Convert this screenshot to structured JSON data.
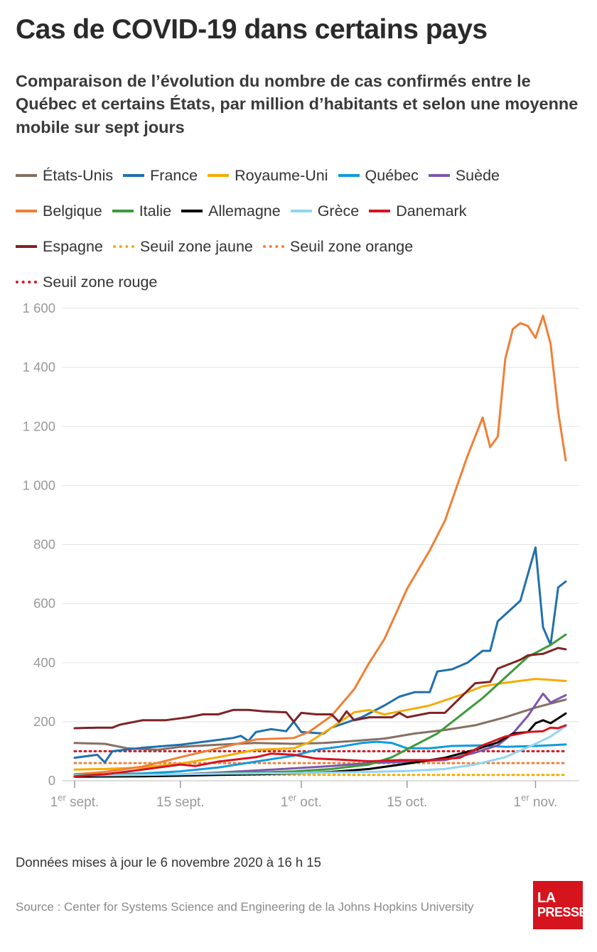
{
  "header": {
    "title": "Cas de COVID-19 dans certains pays",
    "subtitle": "Comparaison de l’évolution du nombre de cas confirmés entre le Québec et certains États, par million d’habitants et selon une moyenne mobile sur sept jours"
  },
  "footer": {
    "note": "Données mises à jour le 6 novembre 2020 à 16 h 15",
    "source": "Source : Center for Systems Science and Engineering de la Johns Hopkins University",
    "logo_line1": "LA",
    "logo_line2": "PRESSE"
  },
  "chart_data": {
    "type": "line",
    "title": "Cas de COVID-19 dans certains pays",
    "xlabel": "",
    "ylabel": "",
    "ylim": [
      0,
      1600
    ],
    "x_range": [
      "2020-09-01",
      "2020-11-05"
    ],
    "yticks": [
      0,
      200,
      400,
      600,
      800,
      1000,
      1200,
      1400,
      1600
    ],
    "ytick_labels": [
      "0",
      "200",
      "400",
      "600",
      "800",
      "1 000",
      "1 200",
      "1 400",
      "1 600"
    ],
    "xticks": [
      {
        "date": "2020-09-01",
        "label": "1",
        "sup": "er",
        "rest": " sept."
      },
      {
        "date": "2020-09-15",
        "label": "15 sept.",
        "sup": "",
        "rest": ""
      },
      {
        "date": "2020-10-01",
        "label": "1",
        "sup": "er",
        "rest": " oct."
      },
      {
        "date": "2020-10-15",
        "label": "15 oct.",
        "sup": "",
        "rest": ""
      },
      {
        "date": "2020-11-01",
        "label": "1",
        "sup": "er",
        "rest": " nov."
      }
    ],
    "grid": true,
    "legend_position": "top",
    "series": [
      {
        "name": "États-Unis",
        "color": "#857062",
        "style": "solid",
        "points": [
          [
            "2020-09-01",
            128
          ],
          [
            "2020-09-05",
            125
          ],
          [
            "2020-09-08",
            110
          ],
          [
            "2020-09-12",
            105
          ],
          [
            "2020-09-15",
            115
          ],
          [
            "2020-09-20",
            122
          ],
          [
            "2020-09-25",
            128
          ],
          [
            "2020-09-30",
            125
          ],
          [
            "2020-10-04",
            128
          ],
          [
            "2020-10-08",
            135
          ],
          [
            "2020-10-12",
            143
          ],
          [
            "2020-10-16",
            160
          ],
          [
            "2020-10-20",
            172
          ],
          [
            "2020-10-24",
            188
          ],
          [
            "2020-10-28",
            215
          ],
          [
            "2020-11-01",
            248
          ],
          [
            "2020-11-05",
            275
          ]
        ]
      },
      {
        "name": "France",
        "color": "#2070ad",
        "style": "solid",
        "points": [
          [
            "2020-09-01",
            78
          ],
          [
            "2020-09-04",
            88
          ],
          [
            "2020-09-05",
            62
          ],
          [
            "2020-09-06",
            100
          ],
          [
            "2020-09-10",
            112
          ],
          [
            "2020-09-15",
            122
          ],
          [
            "2020-09-19",
            135
          ],
          [
            "2020-09-22",
            145
          ],
          [
            "2020-09-23",
            152
          ],
          [
            "2020-09-24",
            135
          ],
          [
            "2020-09-25",
            165
          ],
          [
            "2020-09-27",
            175
          ],
          [
            "2020-09-29",
            168
          ],
          [
            "2020-09-30",
            200
          ],
          [
            "2020-10-01",
            165
          ],
          [
            "2020-10-04",
            160
          ],
          [
            "2020-10-05",
            180
          ],
          [
            "2020-10-09",
            215
          ],
          [
            "2020-10-12",
            255
          ],
          [
            "2020-10-14",
            285
          ],
          [
            "2020-10-16",
            300
          ],
          [
            "2020-10-18",
            300
          ],
          [
            "2020-10-19",
            370
          ],
          [
            "2020-10-21",
            378
          ],
          [
            "2020-10-23",
            400
          ],
          [
            "2020-10-25",
            440
          ],
          [
            "2020-10-26",
            440
          ],
          [
            "2020-10-27",
            540
          ],
          [
            "2020-10-30",
            610
          ],
          [
            "2020-10-31",
            700
          ],
          [
            "2020-11-01",
            790
          ],
          [
            "2020-11-02",
            520
          ],
          [
            "2020-11-03",
            460
          ],
          [
            "2020-11-04",
            655
          ],
          [
            "2020-11-05",
            675
          ]
        ]
      },
      {
        "name": "Royaume-Uni",
        "color": "#f5ac00",
        "style": "solid",
        "points": [
          [
            "2020-09-01",
            38
          ],
          [
            "2020-09-05",
            40
          ],
          [
            "2020-09-10",
            45
          ],
          [
            "2020-09-15",
            58
          ],
          [
            "2020-09-20",
            80
          ],
          [
            "2020-09-25",
            105
          ],
          [
            "2020-09-30",
            110
          ],
          [
            "2020-10-02",
            130
          ],
          [
            "2020-10-05",
            180
          ],
          [
            "2020-10-08",
            232
          ],
          [
            "2020-10-10",
            240
          ],
          [
            "2020-10-12",
            225
          ],
          [
            "2020-10-15",
            240
          ],
          [
            "2020-10-18",
            255
          ],
          [
            "2020-10-22",
            290
          ],
          [
            "2020-10-25",
            320
          ],
          [
            "2020-10-28",
            332
          ],
          [
            "2020-11-01",
            345
          ],
          [
            "2020-11-05",
            338
          ]
        ]
      },
      {
        "name": "Québec",
        "color": "#0f9bde",
        "style": "solid",
        "points": [
          [
            "2020-09-01",
            20
          ],
          [
            "2020-09-10",
            25
          ],
          [
            "2020-09-15",
            32
          ],
          [
            "2020-09-20",
            45
          ],
          [
            "2020-09-25",
            65
          ],
          [
            "2020-09-30",
            85
          ],
          [
            "2020-10-03",
            105
          ],
          [
            "2020-10-06",
            115
          ],
          [
            "2020-10-09",
            128
          ],
          [
            "2020-10-11",
            132
          ],
          [
            "2020-10-13",
            128
          ],
          [
            "2020-10-15",
            110
          ],
          [
            "2020-10-18",
            110
          ],
          [
            "2020-10-21",
            118
          ],
          [
            "2020-10-25",
            120
          ],
          [
            "2020-10-28",
            115
          ],
          [
            "2020-11-01",
            118
          ],
          [
            "2020-11-05",
            123
          ]
        ]
      },
      {
        "name": "Suède",
        "color": "#7d57ab",
        "style": "solid",
        "points": [
          [
            "2020-09-01",
            15
          ],
          [
            "2020-09-10",
            18
          ],
          [
            "2020-09-15",
            22
          ],
          [
            "2020-09-20",
            28
          ],
          [
            "2020-09-25",
            35
          ],
          [
            "2020-09-30",
            42
          ],
          [
            "2020-10-05",
            50
          ],
          [
            "2020-10-10",
            60
          ],
          [
            "2020-10-15",
            65
          ],
          [
            "2020-10-20",
            70
          ],
          [
            "2020-10-24",
            95
          ],
          [
            "2020-10-27",
            120
          ],
          [
            "2020-10-29",
            160
          ],
          [
            "2020-10-31",
            220
          ],
          [
            "2020-11-02",
            295
          ],
          [
            "2020-11-03",
            265
          ],
          [
            "2020-11-05",
            290
          ]
        ]
      },
      {
        "name": "Belgique",
        "color": "#f07f36",
        "style": "solid",
        "points": [
          [
            "2020-09-01",
            22
          ],
          [
            "2020-09-05",
            30
          ],
          [
            "2020-09-10",
            48
          ],
          [
            "2020-09-15",
            80
          ],
          [
            "2020-09-20",
            110
          ],
          [
            "2020-09-25",
            140
          ],
          [
            "2020-09-30",
            145
          ],
          [
            "2020-10-02",
            165
          ],
          [
            "2020-10-05",
            220
          ],
          [
            "2020-10-08",
            310
          ],
          [
            "2020-10-10",
            400
          ],
          [
            "2020-10-12",
            480
          ],
          [
            "2020-10-15",
            650
          ],
          [
            "2020-10-18",
            780
          ],
          [
            "2020-10-20",
            880
          ],
          [
            "2020-10-23",
            1100
          ],
          [
            "2020-10-25",
            1230
          ],
          [
            "2020-10-26",
            1130
          ],
          [
            "2020-10-27",
            1165
          ],
          [
            "2020-10-28",
            1430
          ],
          [
            "2020-10-29",
            1530
          ],
          [
            "2020-10-30",
            1550
          ],
          [
            "2020-10-31",
            1540
          ],
          [
            "2020-11-01",
            1500
          ],
          [
            "2020-11-02",
            1575
          ],
          [
            "2020-11-03",
            1480
          ],
          [
            "2020-11-04",
            1250
          ],
          [
            "2020-11-05",
            1085
          ]
        ]
      },
      {
        "name": "Italie",
        "color": "#3d9a3a",
        "style": "solid",
        "points": [
          [
            "2020-09-01",
            20
          ],
          [
            "2020-09-10",
            22
          ],
          [
            "2020-09-15",
            22
          ],
          [
            "2020-09-20",
            25
          ],
          [
            "2020-09-25",
            28
          ],
          [
            "2020-09-30",
            32
          ],
          [
            "2020-10-05",
            40
          ],
          [
            "2020-10-10",
            55
          ],
          [
            "2020-10-13",
            80
          ],
          [
            "2020-10-16",
            120
          ],
          [
            "2020-10-19",
            160
          ],
          [
            "2020-10-22",
            220
          ],
          [
            "2020-10-25",
            280
          ],
          [
            "2020-10-28",
            350
          ],
          [
            "2020-10-31",
            420
          ],
          [
            "2020-11-03",
            460
          ],
          [
            "2020-11-05",
            495
          ]
        ]
      },
      {
        "name": "Allemagne",
        "color": "#000000",
        "style": "solid",
        "points": [
          [
            "2020-09-01",
            14
          ],
          [
            "2020-09-10",
            15
          ],
          [
            "2020-09-15",
            17
          ],
          [
            "2020-09-20",
            20
          ],
          [
            "2020-09-25",
            22
          ],
          [
            "2020-09-30",
            25
          ],
          [
            "2020-10-05",
            30
          ],
          [
            "2020-10-10",
            40
          ],
          [
            "2020-10-15",
            58
          ],
          [
            "2020-10-20",
            78
          ],
          [
            "2020-10-24",
            105
          ],
          [
            "2020-10-27",
            130
          ],
          [
            "2020-10-29",
            160
          ],
          [
            "2020-10-31",
            165
          ],
          [
            "2020-11-01",
            195
          ],
          [
            "2020-11-02",
            205
          ],
          [
            "2020-11-03",
            195
          ],
          [
            "2020-11-05",
            228
          ]
        ]
      },
      {
        "name": "Grèce",
        "color": "#8fd6f3",
        "style": "solid",
        "points": [
          [
            "2020-09-01",
            18
          ],
          [
            "2020-09-10",
            20
          ],
          [
            "2020-09-15",
            22
          ],
          [
            "2020-09-20",
            24
          ],
          [
            "2020-09-25",
            25
          ],
          [
            "2020-09-30",
            26
          ],
          [
            "2020-10-05",
            28
          ],
          [
            "2020-10-10",
            30
          ],
          [
            "2020-10-15",
            33
          ],
          [
            "2020-10-20",
            40
          ],
          [
            "2020-10-24",
            55
          ],
          [
            "2020-10-28",
            80
          ],
          [
            "2020-11-01",
            125
          ],
          [
            "2020-11-03",
            150
          ],
          [
            "2020-11-05",
            185
          ]
        ]
      },
      {
        "name": "Danemark",
        "color": "#d6141e",
        "style": "solid",
        "points": [
          [
            "2020-09-01",
            15
          ],
          [
            "2020-09-05",
            22
          ],
          [
            "2020-09-10",
            38
          ],
          [
            "2020-09-15",
            55
          ],
          [
            "2020-09-17",
            50
          ],
          [
            "2020-09-20",
            65
          ],
          [
            "2020-09-25",
            80
          ],
          [
            "2020-09-27",
            92
          ],
          [
            "2020-09-30",
            88
          ],
          [
            "2020-10-03",
            75
          ],
          [
            "2020-10-06",
            72
          ],
          [
            "2020-10-10",
            66
          ],
          [
            "2020-10-14",
            70
          ],
          [
            "2020-10-18",
            70
          ],
          [
            "2020-10-22",
            78
          ],
          [
            "2020-10-25",
            120
          ],
          [
            "2020-10-28",
            150
          ],
          [
            "2020-10-31",
            165
          ],
          [
            "2020-11-02",
            168
          ],
          [
            "2020-11-03",
            180
          ],
          [
            "2020-11-04",
            178
          ],
          [
            "2020-11-05",
            188
          ]
        ]
      },
      {
        "name": "Espagne",
        "color": "#7f2325",
        "style": "solid",
        "points": [
          [
            "2020-09-01",
            178
          ],
          [
            "2020-09-04",
            180
          ],
          [
            "2020-09-06",
            180
          ],
          [
            "2020-09-07",
            190
          ],
          [
            "2020-09-10",
            205
          ],
          [
            "2020-09-13",
            205
          ],
          [
            "2020-09-16",
            215
          ],
          [
            "2020-09-18",
            225
          ],
          [
            "2020-09-20",
            225
          ],
          [
            "2020-09-22",
            240
          ],
          [
            "2020-09-24",
            240
          ],
          [
            "2020-09-26",
            235
          ],
          [
            "2020-09-29",
            232
          ],
          [
            "2020-09-30",
            200
          ],
          [
            "2020-10-01",
            230
          ],
          [
            "2020-10-03",
            225
          ],
          [
            "2020-10-05",
            225
          ],
          [
            "2020-10-06",
            200
          ],
          [
            "2020-10-07",
            235
          ],
          [
            "2020-10-08",
            205
          ],
          [
            "2020-10-10",
            215
          ],
          [
            "2020-10-13",
            215
          ],
          [
            "2020-10-14",
            230
          ],
          [
            "2020-10-15",
            215
          ],
          [
            "2020-10-18",
            230
          ],
          [
            "2020-10-20",
            230
          ],
          [
            "2020-10-22",
            280
          ],
          [
            "2020-10-24",
            330
          ],
          [
            "2020-10-26",
            335
          ],
          [
            "2020-10-27",
            380
          ],
          [
            "2020-10-30",
            410
          ],
          [
            "2020-10-31",
            425
          ],
          [
            "2020-11-02",
            430
          ],
          [
            "2020-11-04",
            450
          ],
          [
            "2020-11-05",
            445
          ]
        ]
      },
      {
        "name": "Seuil zone jaune",
        "color": "#f5ac00",
        "style": "dotted",
        "points": [
          [
            "2020-09-01",
            20
          ],
          [
            "2020-11-05",
            20
          ]
        ]
      },
      {
        "name": "Seuil zone orange",
        "color": "#f07f36",
        "style": "dotted",
        "points": [
          [
            "2020-09-01",
            60
          ],
          [
            "2020-11-05",
            60
          ]
        ]
      },
      {
        "name": "Seuil zone rouge",
        "color": "#d6141e",
        "style": "dotted",
        "points": [
          [
            "2020-09-01",
            100
          ],
          [
            "2020-11-05",
            100
          ]
        ]
      }
    ]
  }
}
